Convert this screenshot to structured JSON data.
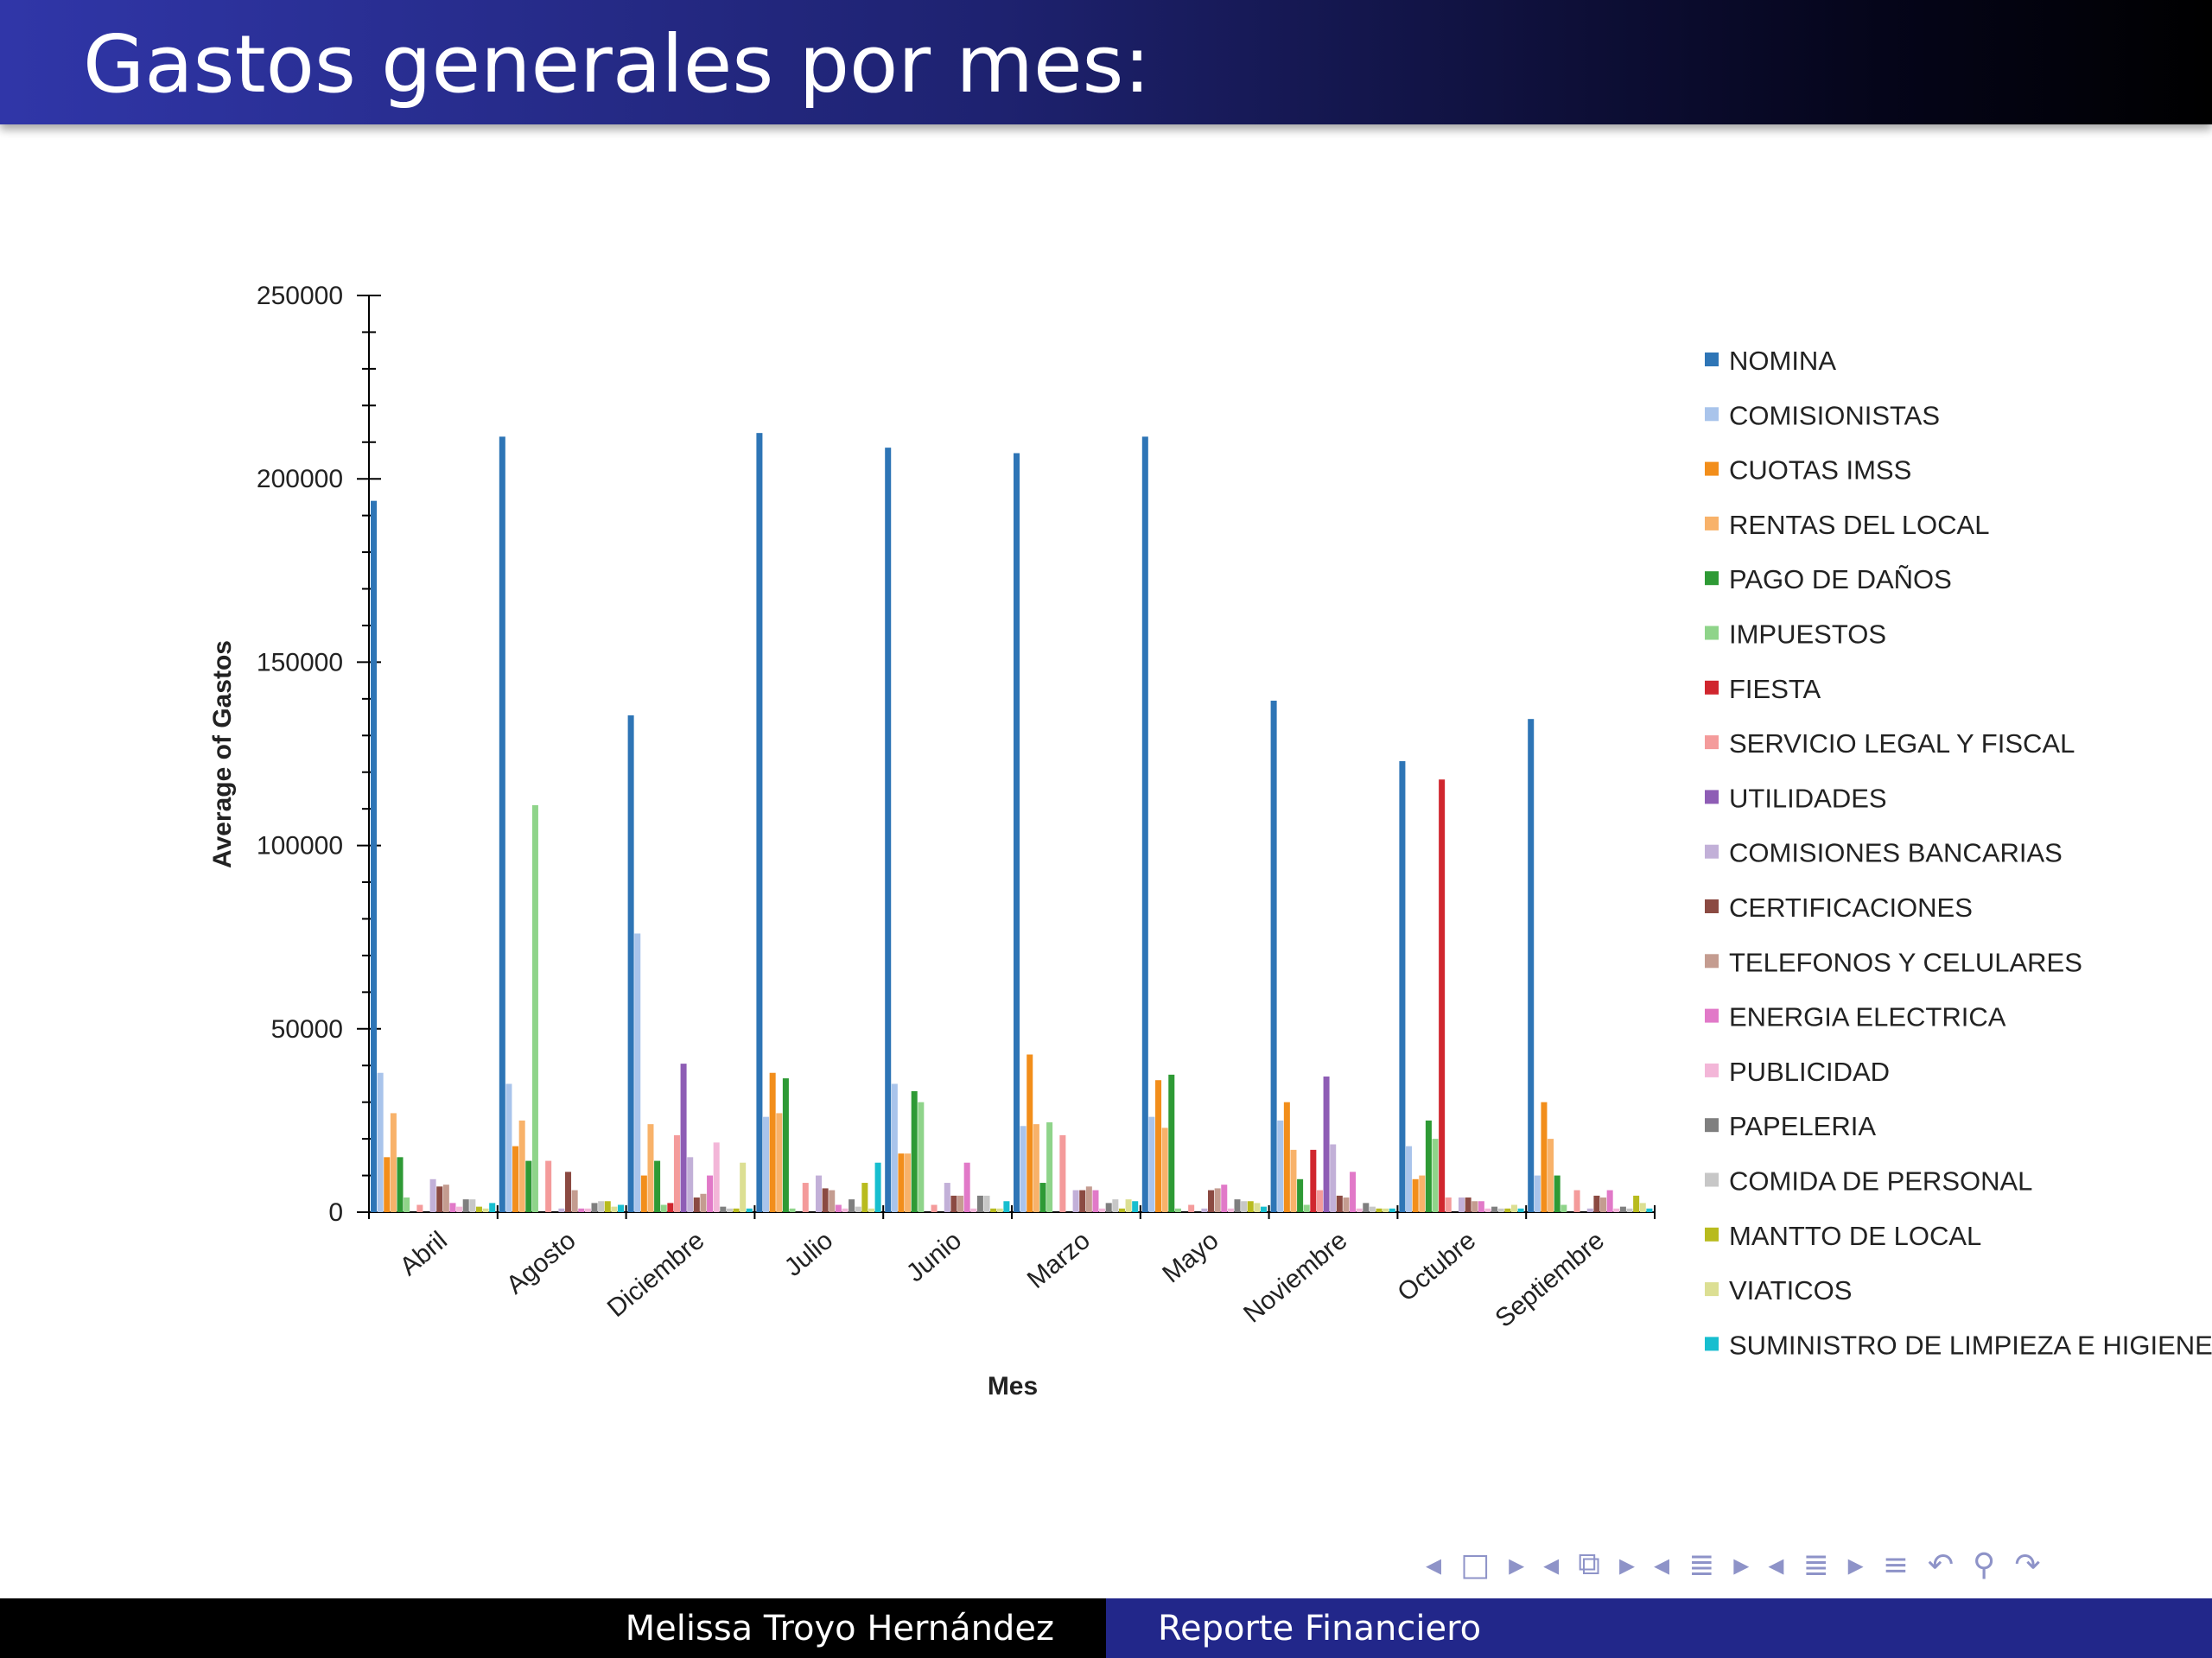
{
  "slide": {
    "title": "Gastos generales por mes:"
  },
  "footer": {
    "author": "Melissa Troyo Hernández",
    "subject": "Reporte Financiero"
  },
  "nav": {
    "icons": [
      "arrow-left-icon",
      "frame-icon",
      "arrow-right-icon",
      "arrow-left-icon",
      "subsection-icon",
      "arrow-right-icon",
      "arrow-left-icon",
      "section-icon",
      "arrow-right-icon",
      "arrow-left-icon",
      "section-icon",
      "arrow-right-icon",
      "align-icon",
      "undo-icon",
      "search-icon",
      "redo-icon"
    ]
  },
  "chart_data": {
    "type": "bar",
    "xlabel": "Mes",
    "ylabel": "Average of Gastos",
    "ylim": [
      0,
      250000
    ],
    "yticks": [
      0,
      50000,
      100000,
      150000,
      200000,
      250000
    ],
    "grid": false,
    "legend_position": "right",
    "categories": [
      "Abril",
      "Agosto",
      "Diciembre",
      "Julio",
      "Junio",
      "Marzo",
      "Mayo",
      "Noviembre",
      "Octubre",
      "Septiembre"
    ],
    "series": [
      {
        "name": "NOMINA",
        "color": "#2e75b6",
        "values": [
          194000,
          211500,
          135500,
          212500,
          208500,
          207000,
          211500,
          139500,
          123000,
          134500
        ]
      },
      {
        "name": "COMISIONISTAS",
        "color": "#a9c4eb",
        "values": [
          38000,
          35000,
          76000,
          26000,
          35000,
          23500,
          26000,
          25000,
          18000,
          10000
        ]
      },
      {
        "name": "CUOTAS IMSS",
        "color": "#f28e1b",
        "values": [
          15000,
          18000,
          10000,
          38000,
          16000,
          43000,
          36000,
          30000,
          9000,
          30000
        ]
      },
      {
        "name": "RENTAS DEL LOCAL",
        "color": "#f8b26a",
        "values": [
          27000,
          25000,
          24000,
          27000,
          16000,
          24000,
          23000,
          17000,
          10000,
          20000
        ]
      },
      {
        "name": "PAGO DE DAÑOS",
        "color": "#2e9a35",
        "values": [
          15000,
          14000,
          14000,
          36500,
          33000,
          8000,
          37500,
          9000,
          25000,
          10000
        ]
      },
      {
        "name": "IMPUESTOS",
        "color": "#8fd48a",
        "values": [
          4000,
          111000,
          2000,
          1000,
          30000,
          24500,
          1000,
          2000,
          20000,
          2000
        ]
      },
      {
        "name": "FIESTA",
        "color": "#d0262e",
        "values": [
          0,
          0,
          2500,
          0,
          0,
          0,
          0,
          17000,
          118000,
          0
        ]
      },
      {
        "name": "SERVICIO LEGAL Y FISCAL",
        "color": "#f49b9b",
        "values": [
          2000,
          14000,
          21000,
          8000,
          2000,
          21000,
          2000,
          6000,
          4000,
          6000
        ]
      },
      {
        "name": "UTILIDADES",
        "color": "#8e5db5",
        "values": [
          0,
          0,
          40500,
          0,
          0,
          0,
          0,
          37000,
          0,
          0
        ]
      },
      {
        "name": "COMISIONES BANCARIAS",
        "color": "#c2b0d8",
        "values": [
          9000,
          1000,
          15000,
          10000,
          8000,
          6000,
          1000,
          18500,
          4000,
          1000
        ]
      },
      {
        "name": "CERTIFICACIONES",
        "color": "#8b4a42",
        "values": [
          7000,
          11000,
          4000,
          6500,
          4500,
          6000,
          6000,
          4500,
          4000,
          4500
        ]
      },
      {
        "name": "TELEFONOS Y CELULARES",
        "color": "#c49c90",
        "values": [
          7500,
          6000,
          5000,
          6000,
          4500,
          7000,
          6500,
          4000,
          3000,
          4000
        ]
      },
      {
        "name": "ENERGIA ELECTRICA",
        "color": "#e179c8",
        "values": [
          2500,
          1000,
          10000,
          2000,
          13500,
          6000,
          7500,
          11000,
          3000,
          6000
        ]
      },
      {
        "name": "PUBLICIDAD",
        "color": "#f3b6d8",
        "values": [
          1500,
          1000,
          19000,
          1000,
          1000,
          1000,
          1000,
          1000,
          1000,
          1000
        ]
      },
      {
        "name": "PAPELERIA",
        "color": "#7f7f7f",
        "values": [
          3500,
          2500,
          1500,
          3500,
          4500,
          2500,
          3500,
          2500,
          1500,
          1500
        ]
      },
      {
        "name": "COMIDA DE PERSONAL",
        "color": "#c7c7c7",
        "values": [
          3500,
          3000,
          1000,
          1500,
          4500,
          3500,
          3000,
          1500,
          1000,
          1000
        ]
      },
      {
        "name": "MANTTO DE LOCAL",
        "color": "#b8bb1e",
        "values": [
          1500,
          3000,
          1000,
          8000,
          1000,
          1000,
          3000,
          1000,
          1000,
          4500
        ]
      },
      {
        "name": "VIATICOS",
        "color": "#dcdf93",
        "values": [
          1000,
          1500,
          13500,
          1000,
          1000,
          3500,
          2500,
          1000,
          2000,
          2500
        ]
      },
      {
        "name": "SUMINISTRO DE LIMPIEZA E HIGIENE",
        "color": "#17becf",
        "values": [
          2500,
          2000,
          1000,
          13500,
          3000,
          3000,
          1500,
          1000,
          1000,
          1000
        ]
      }
    ]
  }
}
